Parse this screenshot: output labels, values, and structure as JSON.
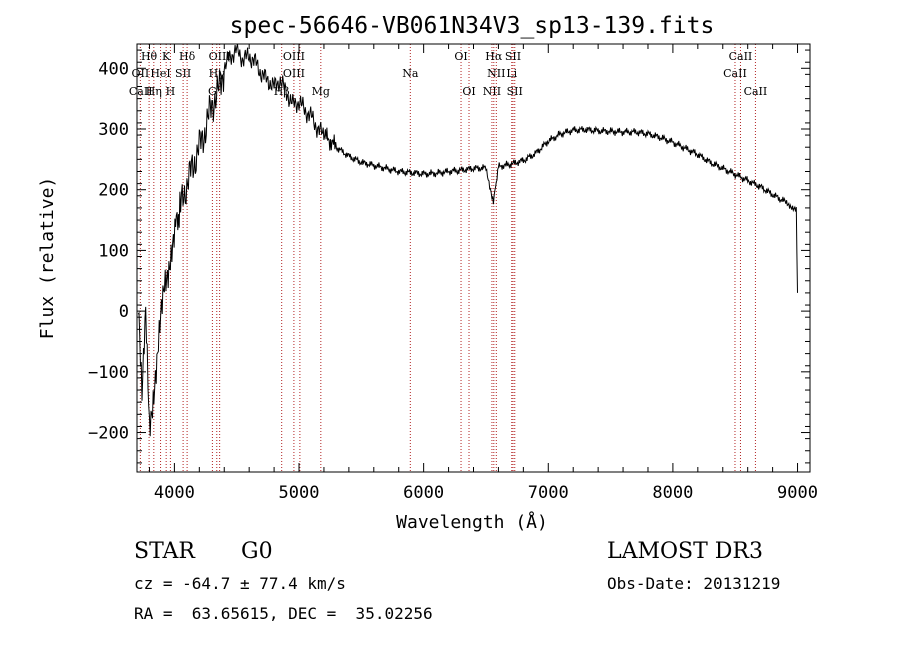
{
  "chart_data": {
    "type": "line",
    "title": "spec-56646-VB061N34V3_sp13-139.fits",
    "xlabel": "Wavelength (Å)",
    "ylabel": "Flux (relative)",
    "xlim": [
      3700,
      9100
    ],
    "ylim": [
      -265,
      440
    ],
    "xticks": [
      4000,
      5000,
      6000,
      7000,
      8000,
      9000
    ],
    "yticks": [
      -200,
      -100,
      0,
      100,
      200,
      300,
      400
    ],
    "series": [
      {
        "name": "spectrum",
        "x": [
          3710,
          3740,
          3770,
          3800,
          3830,
          3860,
          3890,
          3920,
          3950,
          3980,
          4010,
          4050,
          4100,
          4150,
          4200,
          4250,
          4300,
          4350,
          4400,
          4450,
          4500,
          4550,
          4600,
          4650,
          4700,
          4750,
          4800,
          4850,
          4900,
          4950,
          5000,
          5050,
          5100,
          5150,
          5200,
          5300,
          5400,
          5500,
          5600,
          5700,
          5800,
          5900,
          6000,
          6100,
          6200,
          6300,
          6400,
          6500,
          6560,
          6600,
          6700,
          6800,
          6900,
          7000,
          7100,
          7200,
          7300,
          7400,
          7500,
          7600,
          7700,
          7800,
          7900,
          8000,
          8100,
          8200,
          8300,
          8400,
          8500,
          8600,
          8700,
          8800,
          8900,
          8990,
          9000
        ],
        "y": [
          10,
          -150,
          0,
          -180,
          -140,
          -90,
          -20,
          40,
          70,
          110,
          140,
          170,
          210,
          240,
          270,
          300,
          340,
          360,
          400,
          420,
          430,
          415,
          420,
          410,
          390,
          380,
          370,
          380,
          360,
          340,
          345,
          330,
          320,
          300,
          290,
          270,
          255,
          245,
          240,
          235,
          230,
          228,
          226,
          227,
          230,
          232,
          235,
          236,
          180,
          238,
          242,
          248,
          260,
          280,
          292,
          298,
          299,
          297,
          296,
          295,
          295,
          292,
          286,
          278,
          268,
          258,
          245,
          235,
          225,
          215,
          205,
          192,
          180,
          168,
          30
        ]
      }
    ],
    "line_labels": [
      {
        "text": "Hθ",
        "wl": 3797,
        "row": 0
      },
      {
        "text": "OII",
        "wl": 3727,
        "row": 1
      },
      {
        "text": "CaII",
        "wl": 3730,
        "row": 2
      },
      {
        "text": "K",
        "wl": 3934,
        "row": 0
      },
      {
        "text": "HeI",
        "wl": 3889,
        "row": 1
      },
      {
        "text": "Hη",
        "wl": 3835,
        "row": 2
      },
      {
        "text": "Hδ",
        "wl": 4102,
        "row": 0
      },
      {
        "text": "SII",
        "wl": 4070,
        "row": 1
      },
      {
        "text": "H",
        "wl": 3968,
        "row": 2
      },
      {
        "text": "OIII",
        "wl": 4363,
        "row": 0
      },
      {
        "text": "Hγ",
        "wl": 4340,
        "row": 1
      },
      {
        "text": "G",
        "wl": 4305,
        "row": 2
      },
      {
        "text": "OIII",
        "wl": 4959,
        "row": 0
      },
      {
        "text": "OIII",
        "wl": 4959,
        "row": 1
      },
      {
        "text": "Hβ",
        "wl": 4861,
        "row": 2
      },
      {
        "text": "Mg",
        "wl": 5175,
        "row": 2
      },
      {
        "text": "Na",
        "wl": 5893,
        "row": 1
      },
      {
        "text": "OI",
        "wl": 6300,
        "row": 0
      },
      {
        "text": "OI",
        "wl": 6364,
        "row": 2
      },
      {
        "text": "Hα",
        "wl": 6563,
        "row": 0
      },
      {
        "text": "SII",
        "wl": 6717,
        "row": 0
      },
      {
        "text": "NII",
        "wl": 6583,
        "row": 1
      },
      {
        "text": "Li",
        "wl": 6707,
        "row": 1
      },
      {
        "text": "NII",
        "wl": 6548,
        "row": 2
      },
      {
        "text": "SII",
        "wl": 6731,
        "row": 2
      },
      {
        "text": "CaII",
        "wl": 8542,
        "row": 0
      },
      {
        "text": "CaII",
        "wl": 8498,
        "row": 1
      },
      {
        "text": "CaII",
        "wl": 8662,
        "row": 2
      }
    ],
    "line_colors": {
      "line": "#000000",
      "marker": "#b22222"
    },
    "marker_wavelengths": [
      3727,
      3797,
      3835,
      3889,
      3934,
      3968,
      4070,
      4102,
      4305,
      4340,
      4363,
      4861,
      4959,
      5007,
      5175,
      5893,
      6300,
      6364,
      6548,
      6563,
      6583,
      6707,
      6717,
      6731,
      8498,
      8542,
      8662
    ]
  },
  "info": {
    "class": "STAR",
    "subclass": "G0",
    "survey": "LAMOST DR3",
    "cz": "cz = -64.7 ± 77.4 km/s",
    "obs_date": "Obs-Date: 20131219",
    "coords": "RA =  63.65615, DEC =  35.02256"
  }
}
